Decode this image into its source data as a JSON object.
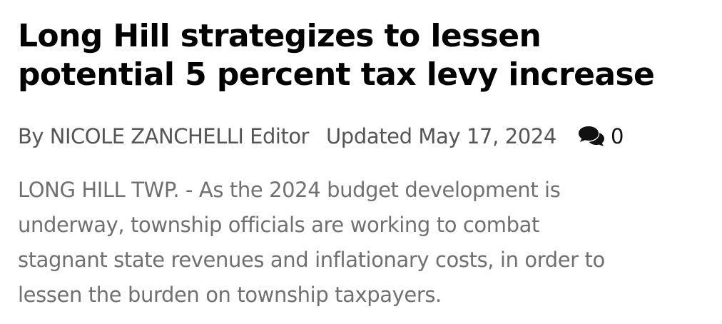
{
  "article": {
    "headline_line1": "Long Hill strategizes to lessen",
    "headline_line2": "potential 5 percent tax levy increase",
    "byline": "By NICOLE ZANCHELLI Editor",
    "updated": "Updated May 17, 2024",
    "comments": {
      "icon": "comments-icon",
      "count": "0"
    },
    "lede_line1": "LONG HILL TWP. - As the 2024 budget development is",
    "lede_line2": "underway, township officials are working to combat",
    "lede_line3": "stagnant state revenues and inflationary costs, in order to",
    "lede_line4": "lessen the burden on township taxpayers."
  },
  "colors": {
    "headline": "#000000",
    "meta_text": "#555555",
    "lede_text": "#707070",
    "icon": "#111111"
  }
}
